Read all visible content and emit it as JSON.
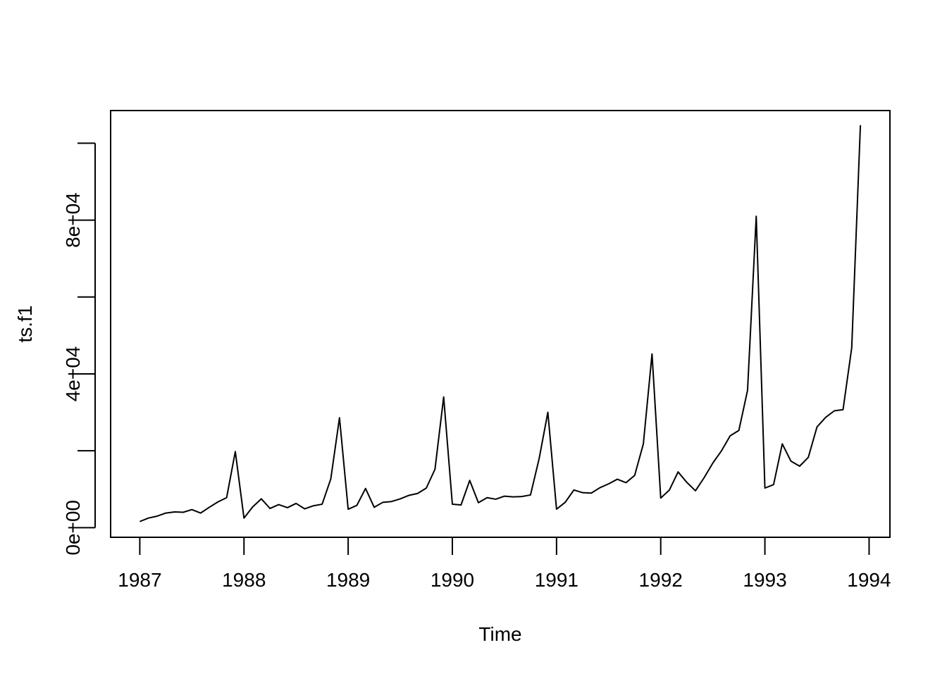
{
  "chart_data": {
    "type": "line",
    "xlabel": "Time",
    "ylabel": "ts.f1",
    "x_ticks": [
      1987,
      1988,
      1989,
      1990,
      1991,
      1992,
      1993,
      1994
    ],
    "y_ticks": [
      0,
      20000,
      40000,
      60000,
      80000,
      100000
    ],
    "y_tick_labels": [
      "0e+00",
      "",
      "4e+04",
      "",
      "8e+04",
      ""
    ],
    "xlim": [
      1986.72,
      1994.2
    ],
    "ylim": [
      -2500,
      108500
    ],
    "start": [
      1987,
      1
    ],
    "frequency": 12,
    "series": [
      {
        "line_color": "#000000",
        "values": [
          1600,
          2500,
          3000,
          3800,
          4100,
          4000,
          4700,
          3800,
          5300,
          6700,
          7800,
          19800,
          2500,
          5400,
          7500,
          5000,
          6000,
          5200,
          6300,
          4900,
          5700,
          6100,
          12700,
          28600,
          4800,
          5800,
          10200,
          5300,
          6600,
          6800,
          7500,
          8400,
          8900,
          10300,
          15200,
          34000,
          6100,
          5900,
          12300,
          6500,
          7800,
          7400,
          8200,
          8000,
          8100,
          8500,
          18000,
          30000,
          4800,
          6600,
          9800,
          9100,
          9000,
          10400,
          11400,
          12600,
          11700,
          13600,
          21800,
          45200,
          7700,
          9800,
          14500,
          11800,
          9600,
          13000,
          16800,
          20000,
          23900,
          25300,
          35700,
          81000,
          10300,
          11200,
          21800,
          17300,
          16000,
          18300,
          26200,
          28700,
          30400,
          30700,
          46800,
          104700
        ]
      }
    ]
  }
}
